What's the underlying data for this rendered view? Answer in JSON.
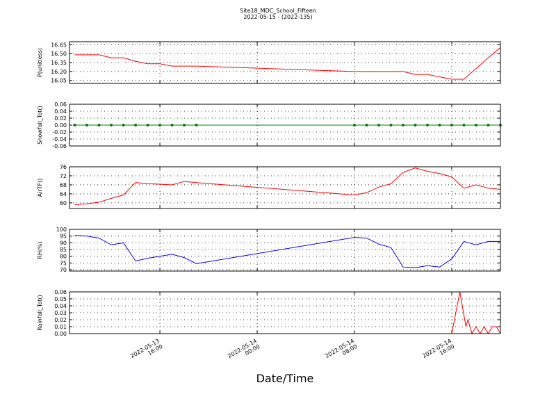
{
  "title": "Site18_MDC_School_Fifteen",
  "subtitle": "2022-05-15 - (2022-135)",
  "x_label": "Date/Time",
  "xlim": [
    "2022-05-13 08:34",
    "2022-05-14 20:00"
  ],
  "xticks": [
    "2022-05-13 16:00",
    "2022-05-14 00:00",
    "2022-05-14 08:00",
    "2022-05-14 16:00"
  ],
  "chart_data": [
    {
      "type": "line",
      "y_label": "P(unitless)",
      "color": "#ff0000",
      "grid": true,
      "ylim": [
        16.0,
        16.7
      ],
      "yticks": [
        16.05,
        {
          "value": 16.2,
          "label": "16.20"
        },
        16.35,
        {
          "value": 16.5,
          "label": "16.50"
        },
        16.65
      ],
      "x": [
        "2022-05-13 09:00",
        "2022-05-13 10:00",
        "2022-05-13 11:00",
        "2022-05-13 12:00",
        "2022-05-13 13:00",
        "2022-05-13 14:00",
        "2022-05-13 15:00",
        "2022-05-13 16:00",
        "2022-05-13 17:00",
        "2022-05-13 18:00",
        "2022-05-13 19:00",
        "2022-05-14 08:00",
        "2022-05-14 09:00",
        "2022-05-14 10:00",
        "2022-05-14 11:00",
        "2022-05-14 12:00",
        "2022-05-14 13:00",
        "2022-05-14 14:00",
        "2022-05-14 15:00",
        "2022-05-14 16:00",
        "2022-05-14 17:00",
        "2022-05-14 18:00",
        "2022-05-14 19:00",
        "2022-05-14 20:00"
      ],
      "values": [
        16.48,
        16.48,
        16.48,
        16.43,
        16.43,
        16.37,
        16.33,
        16.33,
        16.29,
        16.29,
        16.29,
        16.2,
        16.2,
        16.2,
        16.2,
        16.2,
        16.15,
        16.15,
        16.11,
        16.07,
        16.07,
        16.25,
        16.43,
        16.6
      ]
    },
    {
      "type": "line",
      "y_label": "Snowfall_Tot()",
      "color": "#007f00",
      "marker": true,
      "grid": true,
      "ylim": [
        -0.06,
        0.06
      ],
      "yticks": [
        -0.06,
        -0.04,
        -0.02,
        {
          "value": 0,
          "label": "0.00"
        },
        0.02,
        0.04,
        0.06
      ],
      "x": [
        "2022-05-13 09:00",
        "2022-05-13 10:00",
        "2022-05-13 11:00",
        "2022-05-13 12:00",
        "2022-05-13 13:00",
        "2022-05-13 14:00",
        "2022-05-13 15:00",
        "2022-05-13 16:00",
        "2022-05-13 17:00",
        "2022-05-13 18:00",
        "2022-05-13 19:00",
        "2022-05-14 08:00",
        "2022-05-14 09:00",
        "2022-05-14 10:00",
        "2022-05-14 11:00",
        "2022-05-14 12:00",
        "2022-05-14 13:00",
        "2022-05-14 14:00",
        "2022-05-14 15:00",
        "2022-05-14 16:00",
        "2022-05-14 17:00",
        "2022-05-14 18:00",
        "2022-05-14 19:00",
        "2022-05-14 20:00"
      ],
      "values": [
        0,
        0,
        0,
        0,
        0,
        0,
        0,
        0,
        0,
        0,
        0,
        0,
        0,
        0,
        0,
        0,
        0,
        0,
        0,
        0,
        0,
        0,
        0,
        0
      ]
    },
    {
      "type": "line",
      "y_label": "AirTF()",
      "color": "#ff0000",
      "grid": true,
      "ylim": [
        57.5,
        76
      ],
      "yticks": [
        60,
        64,
        68,
        72,
        76
      ],
      "x": [
        "2022-05-13 09:00",
        "2022-05-13 10:00",
        "2022-05-13 11:00",
        "2022-05-13 12:00",
        "2022-05-13 13:00",
        "2022-05-13 14:00",
        "2022-05-13 15:00",
        "2022-05-13 16:00",
        "2022-05-13 17:00",
        "2022-05-13 18:00",
        "2022-05-13 19:00",
        "2022-05-14 08:00",
        "2022-05-14 09:00",
        "2022-05-14 10:00",
        "2022-05-14 11:00",
        "2022-05-14 12:00",
        "2022-05-14 13:00",
        "2022-05-14 14:00",
        "2022-05-14 15:00",
        "2022-05-14 16:00",
        "2022-05-14 17:00",
        "2022-05-14 18:00",
        "2022-05-14 19:00",
        "2022-05-14 20:00"
      ],
      "values": [
        59.2,
        59.6,
        60.3,
        62,
        63.5,
        69,
        68.5,
        68.3,
        68,
        69.5,
        69,
        63.5,
        64.5,
        67,
        68.5,
        73.5,
        75.5,
        74,
        73,
        71.5,
        66.5,
        68,
        66.5,
        66
      ]
    },
    {
      "type": "line",
      "y_label": "RH(%)",
      "color": "#0000ff",
      "grid": true,
      "ylim": [
        69,
        100
      ],
      "yticks": [
        70,
        75,
        80,
        85,
        90,
        95,
        100
      ],
      "x": [
        "2022-05-13 09:00",
        "2022-05-13 10:00",
        "2022-05-13 11:00",
        "2022-05-13 12:00",
        "2022-05-13 13:00",
        "2022-05-13 14:00",
        "2022-05-13 15:00",
        "2022-05-13 16:00",
        "2022-05-13 17:00",
        "2022-05-13 18:00",
        "2022-05-13 19:00",
        "2022-05-14 08:00",
        "2022-05-14 09:00",
        "2022-05-14 10:00",
        "2022-05-14 11:00",
        "2022-05-14 12:00",
        "2022-05-14 13:00",
        "2022-05-14 14:00",
        "2022-05-14 15:00",
        "2022-05-14 16:00",
        "2022-05-14 17:00",
        "2022-05-14 18:00",
        "2022-05-14 19:00",
        "2022-05-14 20:00"
      ],
      "values": [
        95.5,
        95,
        93.5,
        88.5,
        90,
        76.5,
        78.5,
        80,
        81.5,
        79,
        74.5,
        94,
        93.5,
        89,
        86.5,
        72,
        71.5,
        73,
        72,
        78,
        91,
        88.5,
        91,
        91
      ]
    },
    {
      "type": "line",
      "y_label": "Rainfall_Tot()",
      "color": "#ff0000",
      "grid": true,
      "ylim": [
        0,
        0.06
      ],
      "yticks": [
        {
          "value": 0,
          "label": "0.00"
        },
        0.01,
        0.02,
        0.03,
        0.04,
        0.05,
        0.06
      ],
      "x": [
        "2022-05-13 09:00",
        "2022-05-13 12:00",
        "2022-05-13 15:00",
        "2022-05-13 19:00",
        "2022-05-14 08:00",
        "2022-05-14 12:00",
        "2022-05-14 16:00",
        "2022-05-14 16:40",
        "2022-05-14 17:10",
        "2022-05-14 17:20",
        "2022-05-14 17:40",
        "2022-05-14 18:00",
        "2022-05-14 18:20",
        "2022-05-14 18:40",
        "2022-05-14 19:00",
        "2022-05-14 19:20",
        "2022-05-14 19:40",
        "2022-05-14 20:00"
      ],
      "values": [
        0,
        0,
        0,
        0,
        0,
        0,
        0,
        0.06,
        0.01,
        0.02,
        0,
        0.01,
        0,
        0.01,
        0,
        0.01,
        0.01,
        0
      ]
    }
  ]
}
